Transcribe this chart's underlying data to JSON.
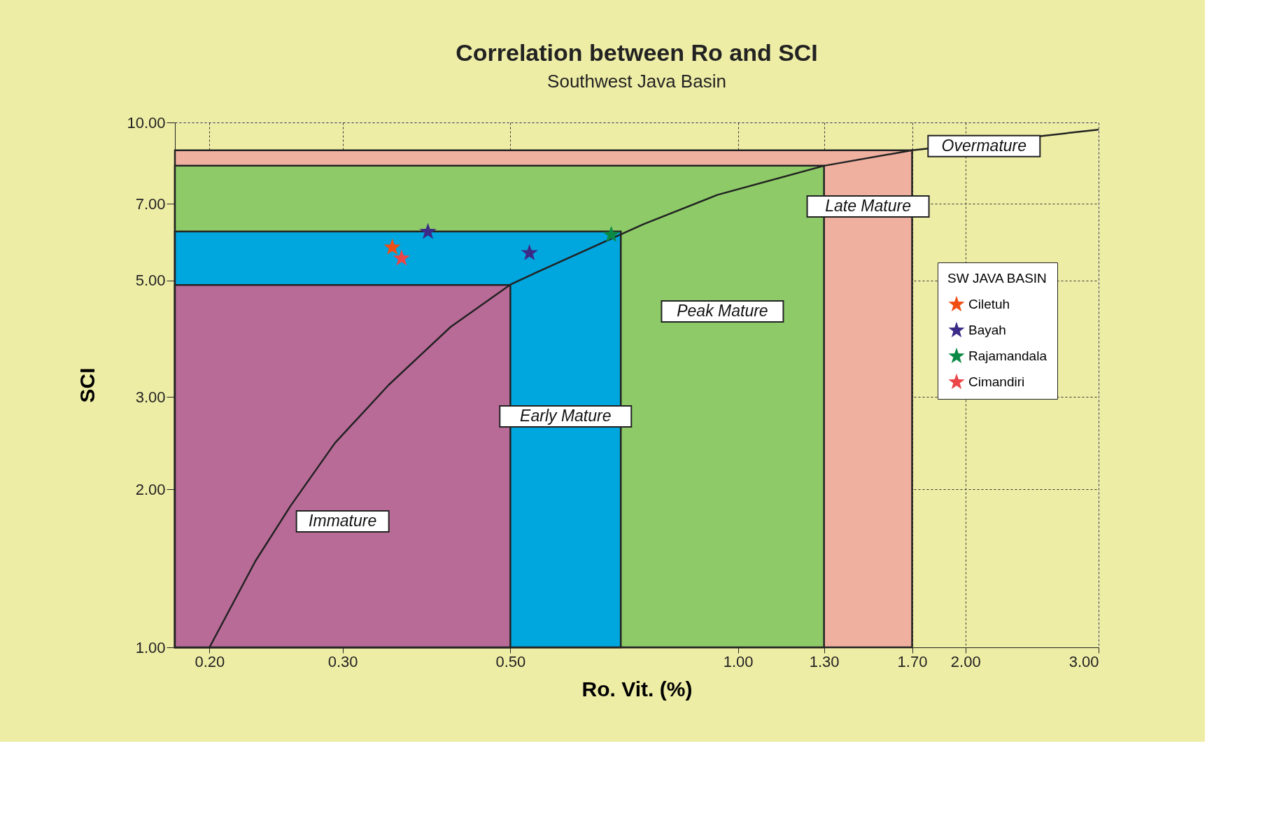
{
  "chart_data": {
    "type": "scatter",
    "title": "Correlation between Ro and SCI",
    "subtitle": "Southwest Java Basin",
    "xlabel": "Ro. Vit. (%)",
    "ylabel": "SCI",
    "legend_title": "SW JAVA BASIN",
    "log": "xy",
    "xlim": [
      0.18,
      3.0
    ],
    "ylim": [
      1.0,
      10.0
    ],
    "xticks": [
      {
        "value": 0.2,
        "label": "0.20"
      },
      {
        "value": 0.3,
        "label": "0.30"
      },
      {
        "value": 0.5,
        "label": "0.50"
      },
      {
        "value": 1.0,
        "label": "1.00"
      },
      {
        "value": 1.3,
        "label": "1.30"
      },
      {
        "value": 1.7,
        "label": "1.70"
      },
      {
        "value": 2.0,
        "label": "2.00"
      },
      {
        "value": 3.0,
        "label": "3.00"
      }
    ],
    "yticks": [
      {
        "value": 1.0,
        "label": "1.00"
      },
      {
        "value": 2.0,
        "label": "2.00"
      },
      {
        "value": 3.0,
        "label": "3.00"
      },
      {
        "value": 5.0,
        "label": "5.00"
      },
      {
        "value": 7.0,
        "label": "7.00"
      },
      {
        "value": 10.0,
        "label": "10.00"
      }
    ],
    "grid": true,
    "legend": "right",
    "series": [
      {
        "type": "area",
        "name": "Late Mature",
        "color": "#f0b0a0",
        "x": [
          0.18,
          1.7
        ],
        "values": [
          8.85,
          8.85
        ]
      },
      {
        "type": "area",
        "name": "Peak Mature",
        "color": "#8ecb68",
        "x": [
          0.18,
          1.3
        ],
        "values": [
          8.27,
          8.27
        ]
      },
      {
        "type": "area",
        "name": "Early Mature",
        "color": "#00a6de",
        "x": [
          0.18,
          0.7
        ],
        "values": [
          6.2,
          6.2
        ]
      },
      {
        "type": "area",
        "name": "Immature",
        "color": "#b96b98",
        "x": [
          0.18,
          0.5
        ],
        "values": [
          4.9,
          4.9
        ]
      },
      {
        "type": "line",
        "color": "#222222",
        "x": [
          0.2,
          0.23,
          0.256,
          0.293,
          0.345,
          0.417,
          0.5,
          0.532,
          0.75,
          0.94,
          1.3,
          1.7,
          3.0
        ],
        "values": [
          1.0,
          1.46,
          1.86,
          2.45,
          3.16,
          4.08,
          4.91,
          5.12,
          6.4,
          7.28,
          8.27,
          8.85,
          9.69
        ]
      },
      {
        "name": "Ciletuh",
        "marker": "star",
        "color": "#f04e12",
        "x": [
          0.349
        ],
        "values": [
          5.78
        ]
      },
      {
        "name": "Bayah",
        "marker": "star",
        "color": "#3b2a86",
        "x": [
          0.389,
          0.53
        ],
        "values": [
          6.19,
          5.64
        ]
      },
      {
        "name": "Rajamandala",
        "marker": "star",
        "color": "#0b8a45",
        "x": [
          0.68
        ],
        "values": [
          6.11
        ]
      },
      {
        "name": "Cimandiri",
        "marker": "star",
        "color": "#ec4548",
        "x": [
          0.359
        ],
        "values": [
          5.51
        ]
      }
    ],
    "annotations": [
      "Overmature"
    ]
  }
}
